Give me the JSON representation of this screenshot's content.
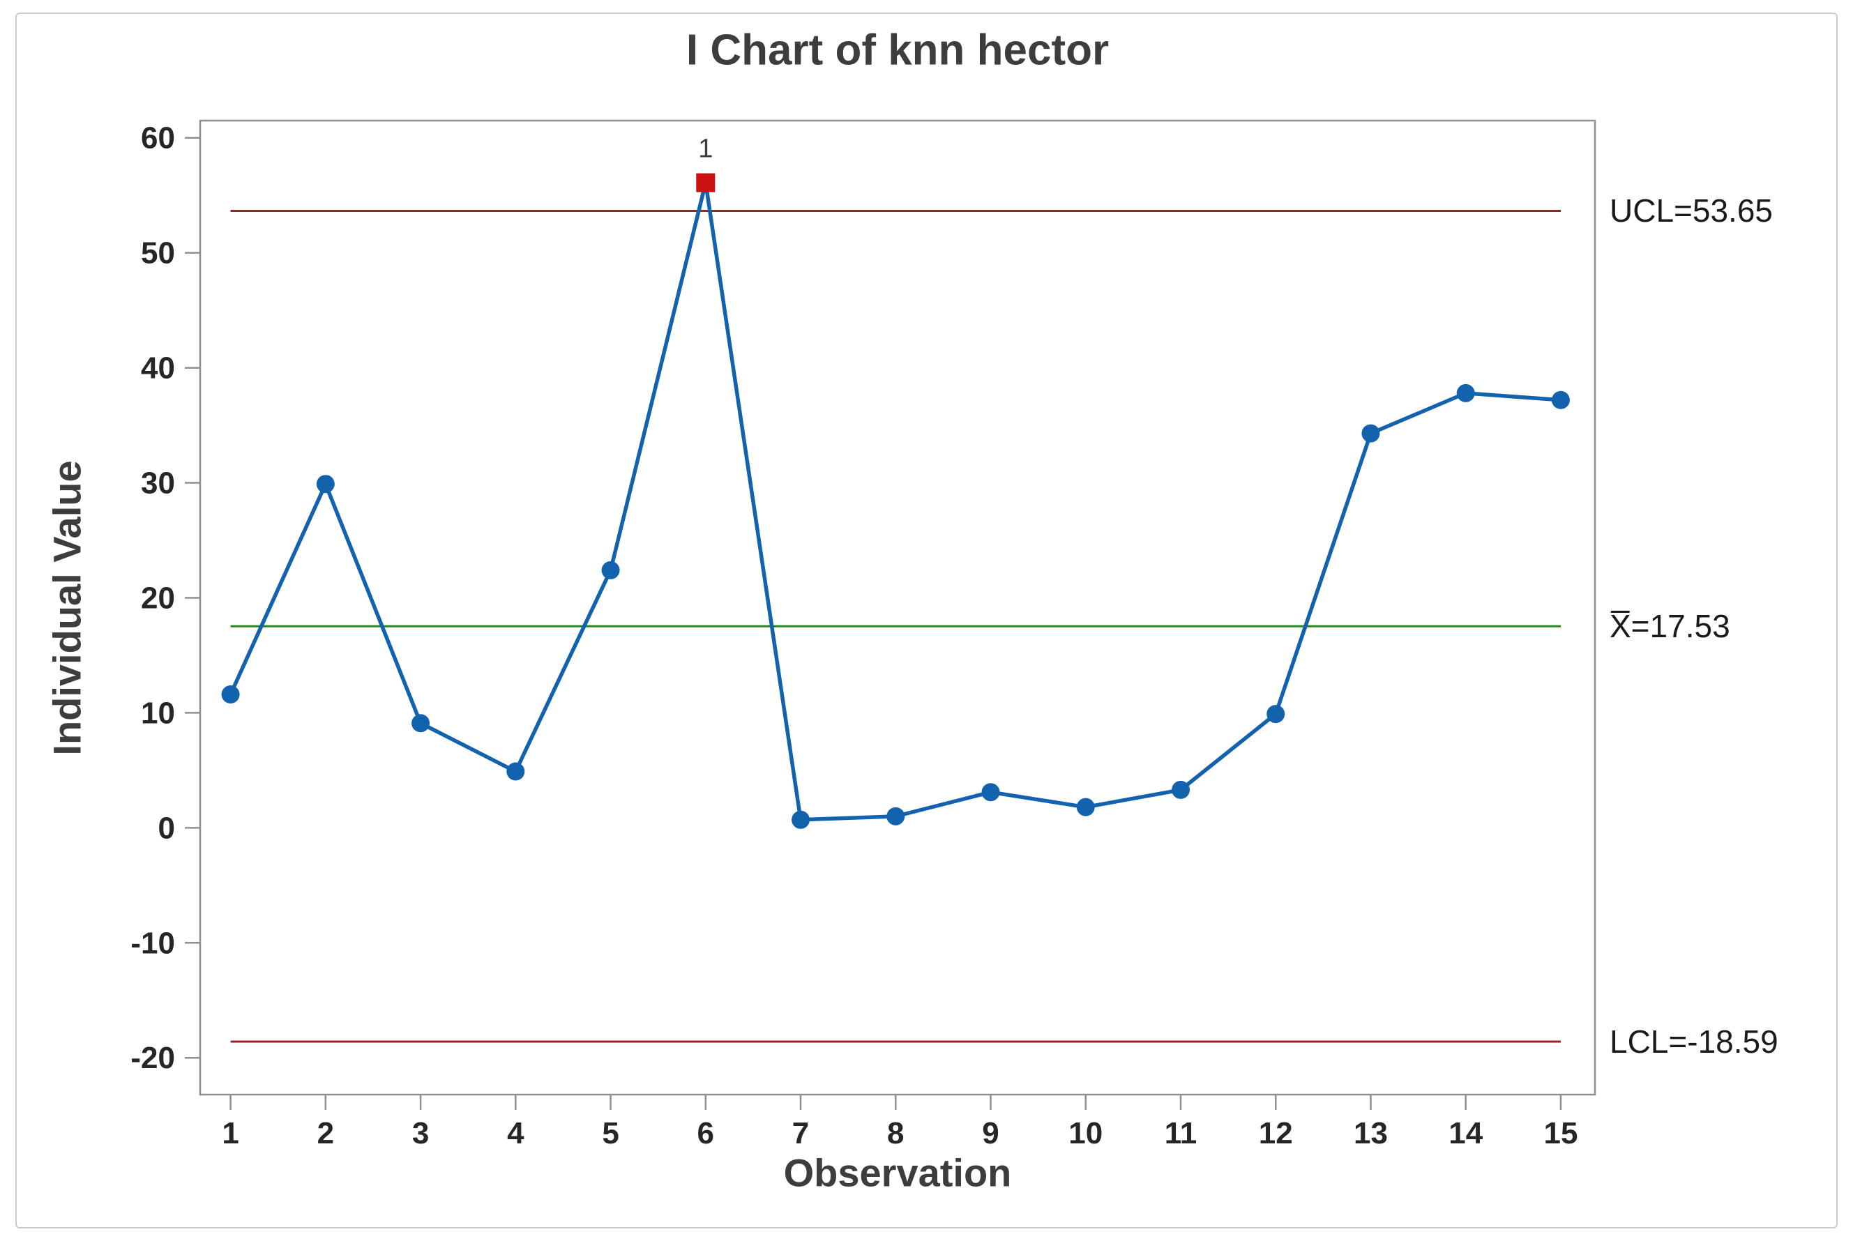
{
  "chart_data": {
    "type": "line",
    "title": "I Chart of knn hector",
    "xlabel": "Observation",
    "ylabel": "Individual Value",
    "x": [
      1,
      2,
      3,
      4,
      5,
      6,
      7,
      8,
      9,
      10,
      11,
      12,
      13,
      14,
      15
    ],
    "values": [
      11.6,
      29.9,
      9.1,
      4.9,
      22.4,
      56.1,
      0.7,
      1.0,
      3.1,
      1.8,
      3.3,
      9.9,
      34.3,
      37.8,
      37.2
    ],
    "series_name": "Individual Value",
    "out_of_control_points": [
      {
        "x": 6,
        "label": "1"
      }
    ],
    "ucl": {
      "value": 53.65,
      "label": "UCL=53.65"
    },
    "center": {
      "value": 17.53,
      "label": "X̅=17.53"
    },
    "lcl": {
      "value": -18.59,
      "label": "LCL=-18.59"
    },
    "xticks": [
      1,
      2,
      3,
      4,
      5,
      6,
      7,
      8,
      9,
      10,
      11,
      12,
      13,
      14,
      15
    ],
    "yticks": [
      60,
      50,
      40,
      30,
      20,
      10,
      0,
      -10,
      -20
    ],
    "xlim": [
      0.68,
      15.36
    ],
    "ylim": [
      -23.2,
      61.5
    ],
    "grid": "off",
    "legend": "none",
    "colors": {
      "series_line": "#1262ae",
      "marker": "#1262ae",
      "out_of_control_marker": "#cc1111",
      "limit_line": "#9c2222",
      "center_line": "#169116",
      "frame": "#8f8f8f",
      "tick_text": "#262626",
      "title_text": "#3d3d3d",
      "card_border": "#cbcbcb"
    }
  }
}
